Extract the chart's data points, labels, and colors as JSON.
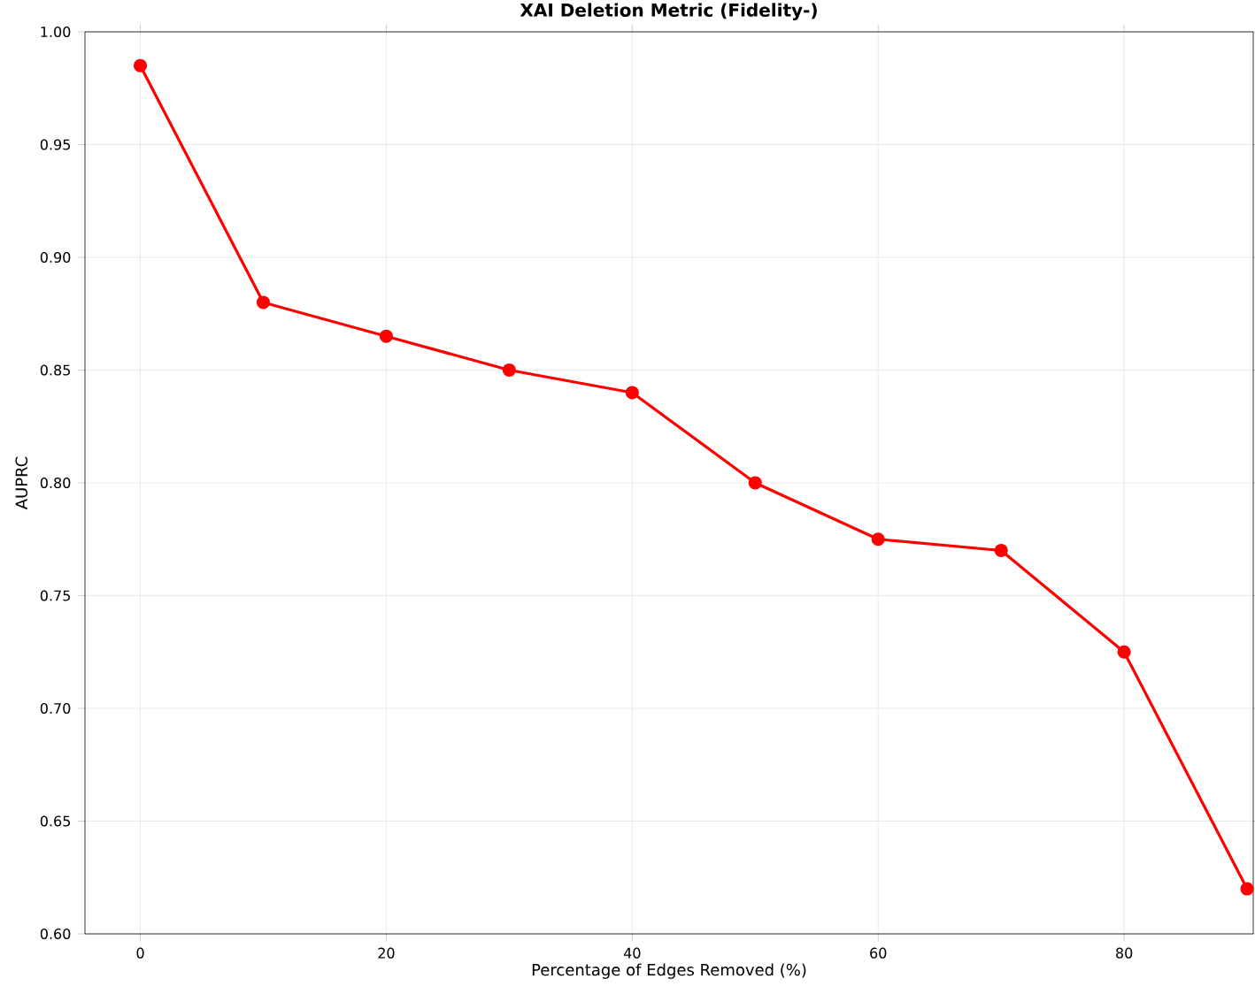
{
  "chart_data": {
    "type": "line",
    "title": "XAI Deletion Metric (Fidelity-)",
    "xlabel": "Percentage of Edges Removed (%)",
    "ylabel": "AUPRC",
    "x": [
      0,
      10,
      20,
      30,
      40,
      50,
      60,
      70,
      80,
      90
    ],
    "series": [
      {
        "color": "#ff0000",
        "values": [
          0.985,
          0.88,
          0.865,
          0.85,
          0.84,
          0.8,
          0.775,
          0.77,
          0.725,
          0.62
        ]
      }
    ],
    "xlim": [
      -4.5,
      90.5
    ],
    "ylim": [
      0.6,
      1.0
    ],
    "xticks": [
      0,
      20,
      40,
      60,
      80
    ],
    "yticks": [
      {
        "value": 0.6,
        "label": "0.60"
      },
      {
        "value": 0.65,
        "label": "0.65"
      },
      {
        "value": 0.7,
        "label": "0.70"
      },
      {
        "value": 0.75,
        "label": "0.75"
      },
      {
        "value": 0.8,
        "label": "0.80"
      },
      {
        "value": 0.85,
        "label": "0.85"
      },
      {
        "value": 0.9,
        "label": "0.90"
      },
      {
        "value": 0.95,
        "label": "0.95"
      },
      {
        "value": 1.0,
        "label": "1.00"
      }
    ],
    "grid": true,
    "marker": "circle",
    "line_style": "solid"
  }
}
